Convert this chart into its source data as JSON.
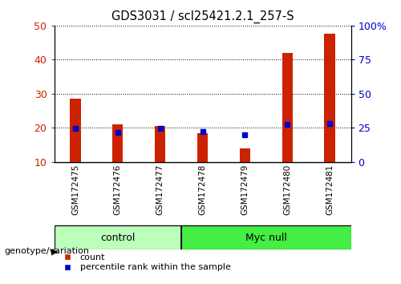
{
  "title": "GDS3031 / scl25421.2.1_257-S",
  "samples": [
    "GSM172475",
    "GSM172476",
    "GSM172477",
    "GSM172478",
    "GSM172479",
    "GSM172480",
    "GSM172481"
  ],
  "counts": [
    28.5,
    21.0,
    20.5,
    18.5,
    14.0,
    42.0,
    47.5
  ],
  "percentile_ranks": [
    24.5,
    21.5,
    24.5,
    22.5,
    20.0,
    27.5,
    28.0
  ],
  "bar_color": "#cc2200",
  "dot_color": "#0000cc",
  "ylim_left": [
    10,
    50
  ],
  "ylim_right": [
    0,
    100
  ],
  "yticks_left": [
    10,
    20,
    30,
    40,
    50
  ],
  "yticks_right": [
    0,
    25,
    50,
    75,
    100
  ],
  "ytick_labels_right": [
    "0",
    "25",
    "50",
    "75",
    "100%"
  ],
  "groups": [
    {
      "label": "control",
      "start": 0,
      "end": 3,
      "color": "#bbffbb"
    },
    {
      "label": "Myc null",
      "start": 3,
      "end": 7,
      "color": "#44ee44"
    }
  ],
  "group_label_prefix": "genotype/variation",
  "legend_count_label": "count",
  "legend_percentile_label": "percentile rank within the sample",
  "background_color": "#ffffff",
  "plot_bg_color": "#ffffff",
  "xtick_bg_color": "#c8c8c8",
  "tick_label_color_left": "#cc2200",
  "tick_label_color_right": "#0000cc",
  "bar_bottom": 10,
  "bar_width": 0.25
}
